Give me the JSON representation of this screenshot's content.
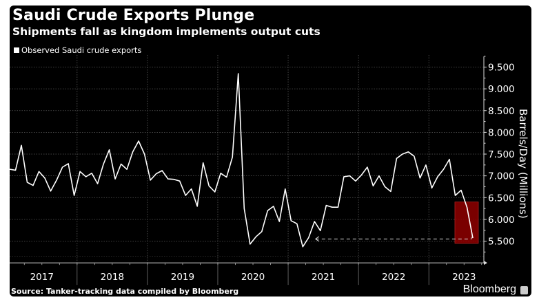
{
  "header": {
    "title": "Saudi Crude Exports Plunge",
    "subtitle": "Shipments fall as kingdom implements output cuts"
  },
  "footer": {
    "source": "Source: Tanker-tracking data compiled by Bloomberg",
    "brand": "Bloomberg"
  },
  "colors": {
    "background": "#000000",
    "line": "#ffffff",
    "highlight": "#8b0000",
    "grid": "#555555"
  },
  "chart_data": {
    "type": "line",
    "title": "Saudi Crude Exports Plunge",
    "subtitle": "Shipments fall as kingdom implements output cuts",
    "xlabel": "",
    "ylabel": "Barrels/Day (Millions)",
    "ylim": [
      5.0,
      9.7
    ],
    "yticks": [
      "9.500",
      "9.000",
      "8.500",
      "8.000",
      "7.500",
      "7.000",
      "6.500",
      "6.000",
      "5.500"
    ],
    "ytick_values": [
      9.5,
      9.0,
      8.5,
      8.0,
      7.5,
      7.0,
      6.5,
      6.0,
      5.5
    ],
    "xticks": [
      "2017",
      "2018",
      "2019",
      "2020",
      "2021",
      "2022",
      "2023"
    ],
    "grid": true,
    "legend": {
      "position": "top-left",
      "entries": [
        "Observed Saudi crude exports"
      ]
    },
    "frequency": "monthly",
    "start": "2017-01",
    "series": [
      {
        "name": "Observed Saudi crude exports",
        "values": [
          7.15,
          7.13,
          7.7,
          6.85,
          6.78,
          7.1,
          6.95,
          6.65,
          6.9,
          7.2,
          7.28,
          6.55,
          7.1,
          6.98,
          7.06,
          6.82,
          7.27,
          7.6,
          6.93,
          7.27,
          7.15,
          7.55,
          7.8,
          7.5,
          6.9,
          7.05,
          7.12,
          6.93,
          6.92,
          6.88,
          6.55,
          6.7,
          6.3,
          7.3,
          6.77,
          6.63,
          7.06,
          6.97,
          7.43,
          9.35,
          6.25,
          5.43,
          5.6,
          5.72,
          6.2,
          6.3,
          5.95,
          6.7,
          5.97,
          5.9,
          5.37,
          5.58,
          5.95,
          5.74,
          6.32,
          6.28,
          6.28,
          6.98,
          7.0,
          6.88,
          7.02,
          7.2,
          6.77,
          7.0,
          6.75,
          6.64,
          7.4,
          7.5,
          7.55,
          7.45,
          6.95,
          7.25,
          6.72,
          6.98,
          7.15,
          7.38,
          6.55,
          6.67,
          6.28,
          5.57
        ]
      }
    ],
    "annotations": [
      {
        "type": "highlight-box",
        "from_index": 76,
        "to_index": 79,
        "y_range": [
          5.45,
          6.4
        ]
      },
      {
        "type": "dashed-reference",
        "from_index": 53,
        "to_index": 79,
        "value": 5.55,
        "note": "arrow pointing back to 2021 low"
      }
    ]
  }
}
